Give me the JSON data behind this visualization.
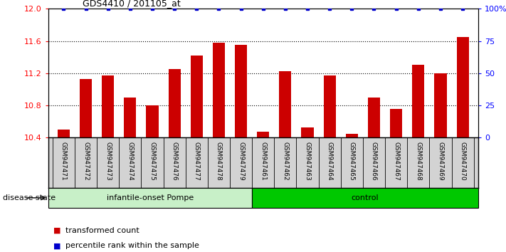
{
  "title": "GDS4410 / 201105_at",
  "samples": [
    "GSM947471",
    "GSM947472",
    "GSM947473",
    "GSM947474",
    "GSM947475",
    "GSM947476",
    "GSM947477",
    "GSM947478",
    "GSM947479",
    "GSM947461",
    "GSM947462",
    "GSM947463",
    "GSM947464",
    "GSM947465",
    "GSM947466",
    "GSM947467",
    "GSM947468",
    "GSM947469",
    "GSM947470"
  ],
  "red_values": [
    10.5,
    11.13,
    11.17,
    10.9,
    10.8,
    11.25,
    11.42,
    11.58,
    11.55,
    10.47,
    11.22,
    10.52,
    11.17,
    10.44,
    10.9,
    10.75,
    11.3,
    11.2,
    11.65
  ],
  "blue_values": [
    100,
    100,
    100,
    100,
    100,
    100,
    100,
    100,
    100,
    100,
    100,
    100,
    100,
    100,
    100,
    100,
    100,
    100,
    100
  ],
  "group1_count": 9,
  "group2_count": 10,
  "group1_label": "infantile-onset Pompe",
  "group2_label": "control",
  "disease_state_label": "disease state",
  "ylim_left": [
    10.4,
    12.0
  ],
  "ylim_right": [
    0,
    100
  ],
  "yticks_left": [
    10.4,
    10.8,
    11.2,
    11.6,
    12.0
  ],
  "yticks_right": [
    0,
    25,
    50,
    75,
    100
  ],
  "ytick_right_labels": [
    "0",
    "25",
    "50",
    "75",
    "100%"
  ],
  "bar_color": "#CC0000",
  "dot_color": "#0000CC",
  "cell_bg": "#D3D3D3",
  "group1_bg": "#C8F0C8",
  "group2_bg": "#00C800",
  "legend_items": [
    {
      "label": "transformed count",
      "color": "#CC0000"
    },
    {
      "label": "percentile rank within the sample",
      "color": "#0000CC"
    }
  ]
}
